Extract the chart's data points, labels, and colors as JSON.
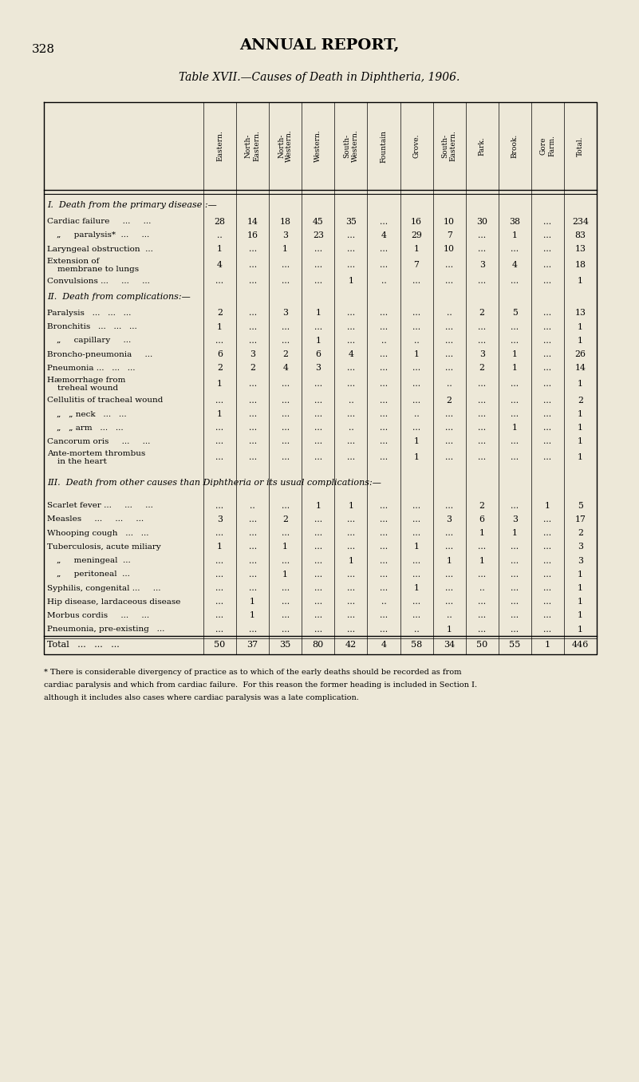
{
  "page_num": "328",
  "main_title": "ANNUAL REPORT,",
  "table_title": "Table XVII.—Causes of Death in Diphtheria, 1906.",
  "bg_color": "#ede8d8",
  "columns": [
    "Eastern.",
    "North-\nEastern.",
    "North-\nWestern.",
    "Western.",
    "South-\nWestern.",
    "Fountain",
    "Grove.",
    "South-\nEastern.",
    "Park.",
    "Brook.",
    "Gore\nFarm.",
    "Total."
  ],
  "sections": [
    {
      "header": "I.  Death from the primary disease :—",
      "header_italic": true,
      "rows": [
        {
          "label": "Cardiac failure     ...     ...",
          "values": [
            "28",
            "14",
            "18",
            "45",
            "35",
            "...",
            "16",
            "10",
            "30",
            "38",
            "...",
            "234"
          ],
          "indent": 0
        },
        {
          "label": "„     paralysis*  ...     ...",
          "values": [
            "..",
            "16",
            "3",
            "23",
            "...",
            "4",
            "29",
            "7",
            "...",
            "1",
            "...",
            "83"
          ],
          "indent": 1
        },
        {
          "label": "Laryngeal obstruction  ...",
          "values": [
            "1",
            "...",
            "1",
            "...",
            "...",
            "...",
            "1",
            "10",
            "...",
            "...",
            "...",
            "13"
          ],
          "indent": 0
        },
        {
          "label": "Extension of membrane to lungs",
          "values": [
            "4",
            "...",
            "...",
            "...",
            "...",
            "...",
            "7",
            "...",
            "3",
            "4",
            "...",
            "18"
          ],
          "indent": 0,
          "multiline": true
        },
        {
          "label": "Convulsions ...     ...     ...",
          "values": [
            "...",
            "...",
            "...",
            "...",
            "1",
            "..",
            "...",
            "...",
            "...",
            "...",
            "...",
            "1"
          ],
          "indent": 0
        }
      ]
    },
    {
      "header": "II.  Death from complications:—",
      "header_italic": true,
      "rows": [
        {
          "label": "Paralysis   ...   ...   ...",
          "values": [
            "2",
            "...",
            "3",
            "1",
            "...",
            "...",
            "...",
            "..",
            "2",
            "5",
            "...",
            "13"
          ],
          "indent": 0
        },
        {
          "label": "Bronchitis   ...   ...   ...",
          "values": [
            "1",
            "...",
            "...",
            "...",
            "...",
            "...",
            "...",
            "...",
            "...",
            "...",
            "...",
            "1"
          ],
          "indent": 0
        },
        {
          "label": "„     capillary     ...",
          "values": [
            "...",
            "...",
            "...",
            "1",
            "...",
            "..",
            "..",
            "...",
            "...",
            "...",
            "...",
            "1"
          ],
          "indent": 1
        },
        {
          "label": "Broncho-pneumonia     ...",
          "values": [
            "6",
            "3",
            "2",
            "6",
            "4",
            "...",
            "1",
            "...",
            "3",
            "1",
            "...",
            "26"
          ],
          "indent": 0
        },
        {
          "label": "Pneumonia ...   ...   ...",
          "values": [
            "2",
            "2",
            "4",
            "3",
            "...",
            "...",
            "...",
            "...",
            "2",
            "1",
            "...",
            "14"
          ],
          "indent": 0
        },
        {
          "label": "Hæmorrhage from treheal wound",
          "values": [
            "1",
            "...",
            "...",
            "...",
            "...",
            "...",
            "...",
            "..",
            "...",
            "...",
            "...",
            "1"
          ],
          "indent": 0,
          "multiline": true
        },
        {
          "label": "Cellulitis of tracheal wound",
          "values": [
            "...",
            "...",
            "...",
            "...",
            "..",
            "...",
            "...",
            "2",
            "...",
            "...",
            "...",
            "2"
          ],
          "indent": 0
        },
        {
          "label": "„   „ neck   ...   ...",
          "values": [
            "1",
            "...",
            "...",
            "...",
            "...",
            "...",
            "..",
            "...",
            "...",
            "...",
            "...",
            "1"
          ],
          "indent": 1
        },
        {
          "label": "„   „ arm   ...   ...",
          "values": [
            "...",
            "...",
            "...",
            "...",
            "..",
            "...",
            "...",
            "...",
            "...",
            "1",
            "...",
            "1"
          ],
          "indent": 1
        },
        {
          "label": "Cancorum oris     ...     ...",
          "values": [
            "...",
            "...",
            "...",
            "...",
            "...",
            "...",
            "1",
            "...",
            "...",
            "...",
            "...",
            "1"
          ],
          "indent": 0
        },
        {
          "label": "Ante-mortem thrombus in the heart",
          "values": [
            "...",
            "...",
            "...",
            "...",
            "...",
            "...",
            "1",
            "...",
            "...",
            "...",
            "...",
            "1"
          ],
          "indent": 0,
          "multiline": true
        }
      ]
    },
    {
      "header": "III.  Death from other causes than Diphtheria or its usual complications:—",
      "header_italic": true,
      "rows": [
        {
          "label": "Scarlet fever ...     ...     ...",
          "values": [
            "...",
            "..",
            "...",
            "1",
            "1",
            "...",
            "...",
            "...",
            "2",
            "...",
            "1",
            "5"
          ],
          "indent": 0
        },
        {
          "label": "Measles     ...     ...     ...",
          "values": [
            "3",
            "...",
            "2",
            "...",
            "...",
            "...",
            "...",
            "3",
            "6",
            "3",
            "...",
            "17"
          ],
          "indent": 0
        },
        {
          "label": "Whooping cough   ...   ...",
          "values": [
            "...",
            "...",
            "...",
            "...",
            "...",
            "...",
            "...",
            "...",
            "1",
            "1",
            "...",
            "2"
          ],
          "indent": 0
        },
        {
          "label": "Tuberculosis, acute miliary",
          "values": [
            "1",
            "...",
            "1",
            "...",
            "...",
            "...",
            "1",
            "...",
            "...",
            "...",
            "...",
            "3"
          ],
          "indent": 0
        },
        {
          "label": "„     meningeal  ...",
          "values": [
            "...",
            "...",
            "...",
            "...",
            "1",
            "...",
            "...",
            "1",
            "1",
            "...",
            "...",
            "3"
          ],
          "indent": 1
        },
        {
          "label": "„     peritoneal  ...",
          "values": [
            "...",
            "...",
            "1",
            "...",
            "...",
            "...",
            "...",
            "...",
            "...",
            "...",
            "...",
            "1"
          ],
          "indent": 1
        },
        {
          "label": "Syphilis, congenital ...     ...",
          "values": [
            "...",
            "...",
            "...",
            "...",
            "...",
            "...",
            "1",
            "...",
            "..",
            "...",
            "...",
            "1"
          ],
          "indent": 0
        },
        {
          "label": "Hip disease, lardaceous disease",
          "values": [
            "...",
            "1",
            "...",
            "...",
            "...",
            "..",
            "...",
            "...",
            "...",
            "...",
            "...",
            "1"
          ],
          "indent": 0
        },
        {
          "label": "Morbus cordis     ...     ...",
          "values": [
            "...",
            "1",
            "...",
            "...",
            "...",
            "...",
            "...",
            "..",
            "...",
            "...",
            "...",
            "1"
          ],
          "indent": 0
        },
        {
          "label": "Pneumonia, pre-existing   ...",
          "values": [
            "...",
            "...",
            "...",
            "...",
            "...",
            "...",
            "..",
            "1",
            "...",
            "...",
            "...",
            "1"
          ],
          "indent": 0
        }
      ]
    }
  ],
  "total_row": {
    "label": "Total   ...   ...   ...",
    "values": [
      "50",
      "37",
      "35",
      "80",
      "42",
      "4",
      "58",
      "34",
      "50",
      "55",
      "1",
      "446"
    ]
  },
  "footnote": "* There is considerable divergency of practice as to which of the early deaths should be recorded as from\ncardiac paralysis and which from cardiac failure.  For this reason the former heading is included in Section I.\nalthough it includes also cases where cardiac paralysis was a late complication."
}
